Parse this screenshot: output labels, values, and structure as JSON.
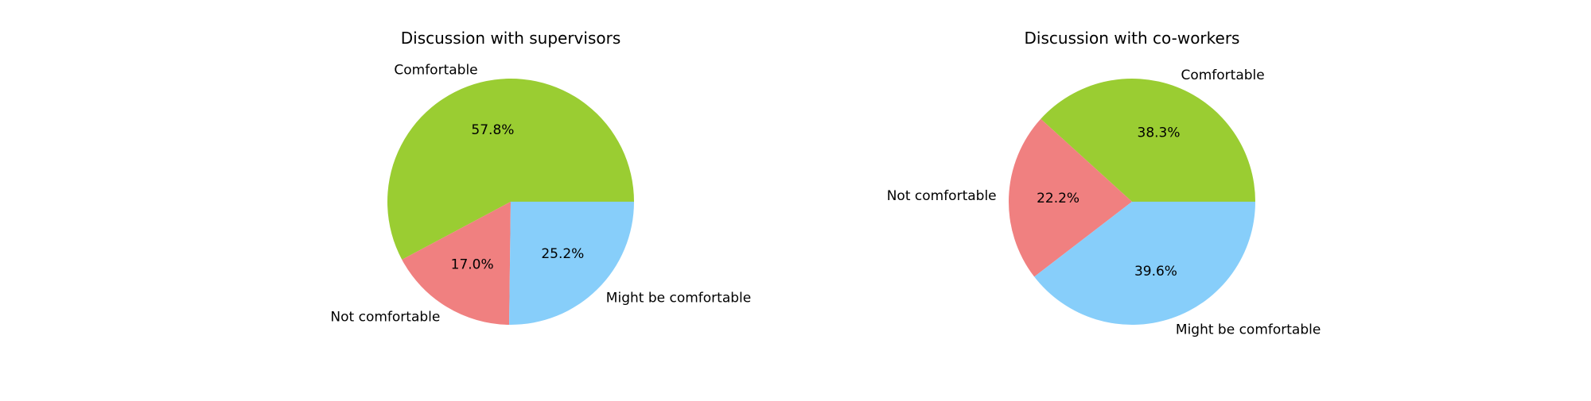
{
  "chart_data": [
    {
      "type": "pie",
      "title": "Discussion with supervisors",
      "categories": [
        "Comfortable",
        "Not comfortable",
        "Might be comfortable"
      ],
      "values": [
        57.8,
        17.0,
        25.2
      ],
      "value_labels": [
        "57.8%",
        "17.0%",
        "25.2%"
      ],
      "colors": [
        "#9acd32",
        "#f08080",
        "#87cefa"
      ],
      "legend": false
    },
    {
      "type": "pie",
      "title": "Discussion with co-workers",
      "categories": [
        "Comfortable",
        "Not comfortable",
        "Might be comfortable"
      ],
      "values": [
        38.3,
        22.2,
        39.6
      ],
      "value_labels": [
        "38.3%",
        "22.2%",
        "39.6%"
      ],
      "colors": [
        "#9acd32",
        "#f08080",
        "#87cefa"
      ],
      "legend": false
    }
  ]
}
